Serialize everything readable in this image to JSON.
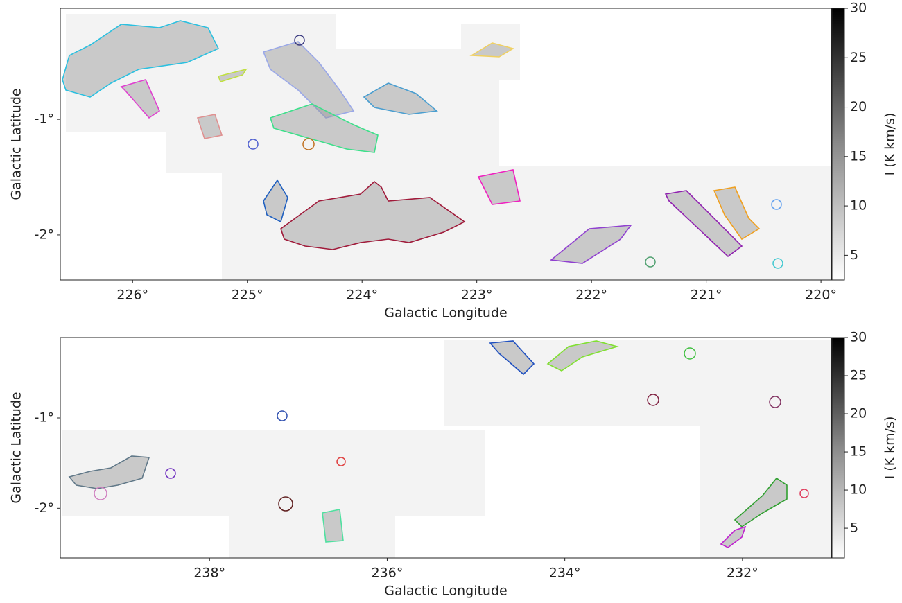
{
  "chart_data": [
    {
      "type": "image",
      "xlabel": "Galactic Longitude",
      "ylabel": "Galactic Latitude",
      "xlim": [
        226.63,
        219.91
      ],
      "ylim": [
        -2.39,
        -0.04
      ],
      "xticks": [
        {
          "value": 226,
          "label": "226°"
        },
        {
          "value": 225,
          "label": "225°"
        },
        {
          "value": 224,
          "label": "224°"
        },
        {
          "value": 223,
          "label": "223°"
        },
        {
          "value": 222,
          "label": "222°"
        },
        {
          "value": 221,
          "label": "221°"
        },
        {
          "value": 220,
          "label": "220°"
        }
      ],
      "yticks": [
        {
          "value": -1,
          "label": "-1°"
        },
        {
          "value": -2,
          "label": "-2°"
        }
      ],
      "colorbar": {
        "label": "I (K km/s)",
        "lim": [
          2.5,
          30
        ],
        "ticks": [
          5,
          10,
          15,
          20,
          25,
          30
        ]
      }
    },
    {
      "type": "image",
      "xlabel": "Galactic Longitude",
      "ylabel": "Galactic Latitude",
      "xlim": [
        239.68,
        231.0
      ],
      "ylim": [
        -2.55,
        -0.11
      ],
      "xticks": [
        {
          "value": 238,
          "label": "238°"
        },
        {
          "value": 236,
          "label": "236°"
        },
        {
          "value": 234,
          "label": "234°"
        },
        {
          "value": 232,
          "label": "232°"
        }
      ],
      "yticks": [
        {
          "value": -1,
          "label": "-1°"
        },
        {
          "value": -2,
          "label": "-2°"
        }
      ],
      "colorbar": {
        "label": "I (K km/s)",
        "lim": [
          1.1,
          30
        ],
        "ticks": [
          5,
          10,
          15,
          20,
          25,
          30
        ]
      }
    }
  ]
}
